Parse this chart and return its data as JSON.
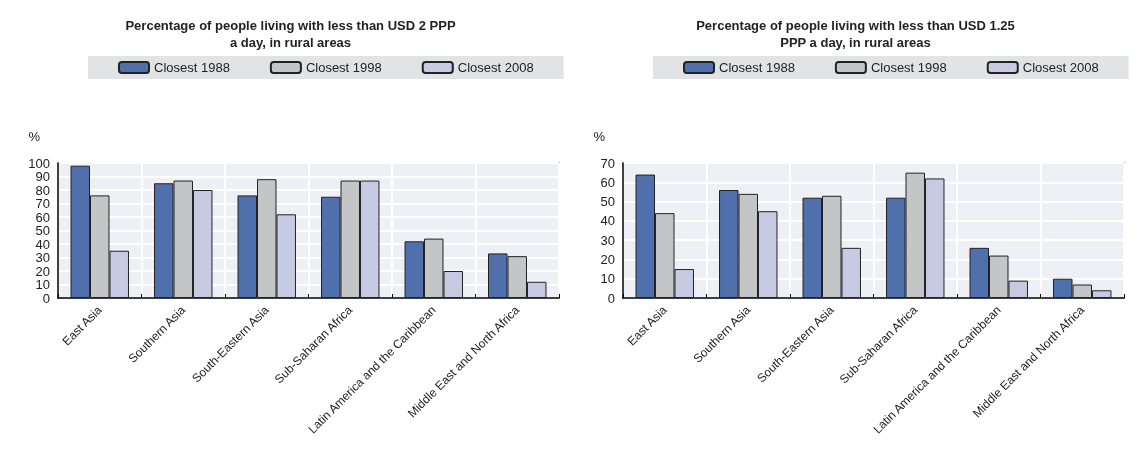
{
  "chart_data": [
    {
      "type": "bar",
      "title": "Percentage of people living with less than USD 2 PPP\na day, in rural areas",
      "ylabel": "%",
      "categories": [
        "East Asia",
        "Southern Asia",
        "South-Eastern Asia",
        "Sub-Saharan Africa",
        "Latin America and the Caribbean",
        "Middle East and North Africa"
      ],
      "series": [
        {
          "name": "Closest 1988",
          "color": "#4f6fad",
          "values": [
            98,
            85,
            76,
            75,
            42,
            33
          ]
        },
        {
          "name": "Closest 1998",
          "color": "#c4c5c7",
          "values": [
            76,
            87,
            88,
            87,
            44,
            31
          ]
        },
        {
          "name": "Closest 2008",
          "color": "#c6cbe3",
          "values": [
            35,
            80,
            62,
            87,
            20,
            12
          ]
        }
      ],
      "ylim": [
        0,
        100
      ],
      "yticks": [
        0,
        10,
        20,
        30,
        40,
        50,
        60,
        70,
        80,
        90,
        100
      ],
      "grid": true,
      "legend": "top"
    },
    {
      "type": "bar",
      "title": "Percentage of people living with less than USD 1.25\nPPP a day, in rural areas",
      "ylabel": "%",
      "categories": [
        "East Asia",
        "Southern Asia",
        "South-Eastern Asia",
        "Sub-Saharan Africa",
        "Latin America and the Caribbean",
        "Middle East and North Africa"
      ],
      "series": [
        {
          "name": "Closest 1988",
          "color": "#4f6fad",
          "values": [
            64,
            56,
            52,
            52,
            26,
            10
          ]
        },
        {
          "name": "Closest 1998",
          "color": "#c4c5c7",
          "values": [
            44,
            54,
            53,
            65,
            22,
            7
          ]
        },
        {
          "name": "Closest 2008",
          "color": "#c6cbe3",
          "values": [
            15,
            45,
            26,
            62,
            9,
            4
          ]
        }
      ],
      "ylim": [
        0,
        70
      ],
      "yticks": [
        0,
        10,
        20,
        30,
        40,
        50,
        60,
        70
      ],
      "grid": true,
      "legend": "top"
    }
  ]
}
